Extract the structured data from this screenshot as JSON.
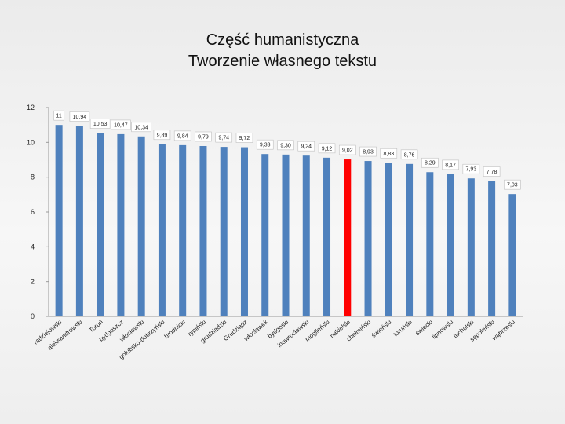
{
  "title_line1": "Część humanistyczna",
  "title_line2": "Tworzenie własnego tekstu",
  "chart_data": {
    "type": "bar",
    "title": "Część humanistyczna Tworzenie własnego tekstu",
    "xlabel": "",
    "ylabel": "",
    "ylim": [
      0,
      12
    ],
    "yticks": [
      0,
      2,
      4,
      6,
      8,
      10,
      12
    ],
    "grid": false,
    "legend": "none",
    "categories": [
      "radziejowski",
      "aleksandrowski",
      "Toruń",
      "bydgoszcz",
      "włocławski",
      "golubsko-dobrzyński",
      "brodnicki",
      "rypiński",
      "grudziądzki",
      "Grudziądz",
      "włocławek",
      "bydgoski",
      "inowrocławski",
      "mogileński",
      "nakielski",
      "chełmiński",
      "świeński",
      "toruński",
      "świecki",
      "lipnowski",
      "tucholski",
      "sępoleński",
      "wąbrzeski"
    ],
    "labels": [
      "11",
      "10,94",
      "10,53",
      "10,47",
      "10,34",
      "9,89",
      "9,84",
      "9,79",
      "9,74",
      "9,72",
      "9,33",
      "9,30",
      "9,24",
      "9,12",
      "9,02",
      "8,93",
      "8,83",
      "8,76",
      "8,29",
      "8,17",
      "7,93",
      "7,78",
      "7,03"
    ],
    "values": [
      11,
      10.94,
      10.53,
      10.47,
      10.34,
      9.89,
      9.84,
      9.79,
      9.74,
      9.72,
      9.33,
      9.3,
      9.24,
      9.12,
      9.02,
      8.93,
      8.83,
      8.76,
      8.29,
      8.17,
      7.93,
      7.78,
      7.03
    ],
    "bar_color": "#4F81BD",
    "highlight_index": 14,
    "highlight_color": "#FF0000"
  }
}
